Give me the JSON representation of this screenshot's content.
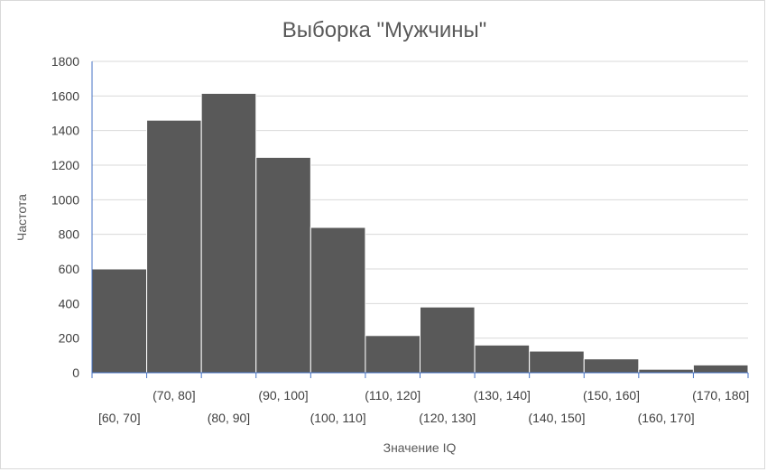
{
  "chart_data": {
    "type": "bar",
    "title": "Выборка \"Мужчины\"",
    "xlabel": "Значение IQ",
    "ylabel": "Частота",
    "categories": [
      "[60, 70]",
      "(70, 80]",
      "(80, 90]",
      "(90, 100]",
      "(100, 110]",
      "(110, 120]",
      "(120, 130]",
      "(130, 140]",
      "(140, 150]",
      "(150, 160]",
      "(160, 170]",
      "(170, 180]"
    ],
    "values": [
      600,
      1460,
      1615,
      1245,
      840,
      215,
      380,
      160,
      125,
      80,
      20,
      45
    ],
    "ylim": [
      0,
      1800
    ],
    "yticks": [
      0,
      200,
      400,
      600,
      800,
      1000,
      1200,
      1400,
      1600,
      1800
    ],
    "grid": true,
    "legend": "none",
    "bar_color": "#595959",
    "gridline_color": "#d9d9d9",
    "axis_color": "#4472c4"
  }
}
